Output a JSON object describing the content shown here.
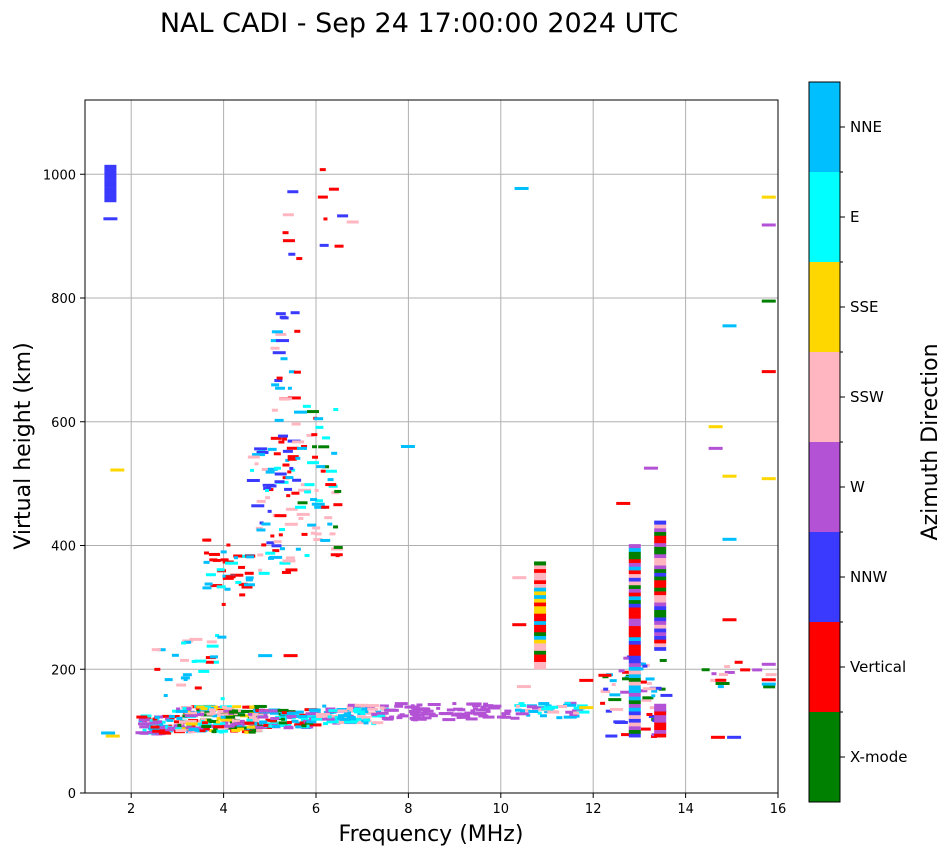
{
  "chart_data": {
    "type": "scatter",
    "title": "NAL CADI - Sep 24 17:00:00 2024 UTC",
    "xlabel": "Frequency (MHz)",
    "ylabel": "Virtual height (km)",
    "xlim": [
      1,
      16
    ],
    "ylim": [
      0,
      1120
    ],
    "xticks": [
      2,
      4,
      6,
      8,
      10,
      12,
      14,
      16
    ],
    "yticks": [
      0,
      200,
      400,
      600,
      800,
      1000
    ],
    "grid": true,
    "colorbar": {
      "title": "Azimuth Direction",
      "categories": [
        {
          "label": "X-mode",
          "color": "#008000"
        },
        {
          "label": "Vertical",
          "color": "#ff0000"
        },
        {
          "label": "NNW",
          "color": "#3a3aff"
        },
        {
          "label": "W",
          "color": "#b452d6"
        },
        {
          "label": "SSW",
          "color": "#ffb6c1"
        },
        {
          "label": "SSE",
          "color": "#ffd700"
        },
        {
          "label": "E",
          "color": "#00ffff"
        },
        {
          "label": "NNE",
          "color": "#00bfff"
        }
      ]
    },
    "seed": 24,
    "bands": [
      {
        "x": [
          2.2,
          3.0
        ],
        "y": [
          95,
          125
        ],
        "n": 70,
        "dir": [
          "Vertical",
          "E",
          "NNE",
          "W"
        ]
      },
      {
        "x": [
          3.0,
          4.8
        ],
        "y": [
          98,
          140
        ],
        "n": 220,
        "dir": [
          "Vertical",
          "NNE",
          "E",
          "W",
          "X-mode",
          "SSW",
          "SSE"
        ]
      },
      {
        "x": [
          4.8,
          6.0
        ],
        "y": [
          105,
          135
        ],
        "n": 90,
        "dir": [
          "X-mode",
          "Vertical",
          "E",
          "NNE",
          "W"
        ]
      },
      {
        "x": [
          6.0,
          7.5
        ],
        "y": [
          112,
          142
        ],
        "n": 90,
        "dir": [
          "W",
          "SSW",
          "NNE",
          "E"
        ]
      },
      {
        "x": [
          7.5,
          10.2
        ],
        "y": [
          118,
          145
        ],
        "n": 80,
        "dir": [
          "W"
        ]
      },
      {
        "x": [
          10.2,
          11.8
        ],
        "y": [
          120,
          145
        ],
        "n": 40,
        "dir": [
          "W",
          "NNE",
          "SSW",
          "E"
        ]
      },
      {
        "x": [
          2.5,
          4.0
        ],
        "y": [
          150,
          260
        ],
        "n": 28,
        "dir": [
          "Vertical",
          "NNE",
          "E",
          "SSW"
        ]
      },
      {
        "x": [
          3.6,
          4.6
        ],
        "y": [
          300,
          410
        ],
        "n": 40,
        "dir": [
          "Vertical",
          "NNE",
          "E"
        ]
      },
      {
        "x": [
          4.6,
          5.6
        ],
        "y": [
          350,
          560
        ],
        "n": 70,
        "dir": [
          "Vertical",
          "NNW",
          "E",
          "NNE",
          "SSW"
        ]
      },
      {
        "x": [
          5.1,
          5.6
        ],
        "y": [
          560,
          780
        ],
        "n": 30,
        "dir": [
          "Vertical",
          "NNW",
          "SSW",
          "NNE"
        ]
      },
      {
        "x": [
          5.6,
          6.5
        ],
        "y": [
          380,
          630
        ],
        "n": 60,
        "dir": [
          "E",
          "NNE",
          "X-mode",
          "Vertical",
          "SSW"
        ]
      },
      {
        "x": [
          5.3,
          6.9
        ],
        "y": [
          860,
          1010
        ],
        "n": 14,
        "dir": [
          "Vertical",
          "NNW",
          "SSW"
        ]
      },
      {
        "x": [
          12.2,
          13.6
        ],
        "y": [
          90,
          220
        ],
        "n": 60,
        "dir": [
          "SSW",
          "Vertical",
          "NNW",
          "W",
          "NNE",
          "X-mode"
        ]
      },
      {
        "x": [
          14.3,
          16.0
        ],
        "y": [
          170,
          215
        ],
        "n": 14,
        "dir": [
          "W",
          "X-mode",
          "SSW",
          "NNE",
          "Vertical"
        ]
      }
    ],
    "columns": [
      {
        "x": 10.85,
        "y": [
          200,
          370
        ],
        "dir": [
          "SSE",
          "X-mode",
          "NNE",
          "Vertical",
          "SSW"
        ]
      },
      {
        "x": 12.9,
        "y": [
          90,
          400
        ],
        "dir": [
          "NNE",
          "NNW",
          "W",
          "Vertical",
          "X-mode",
          "SSW"
        ]
      },
      {
        "x": 13.45,
        "y": [
          230,
          440
        ],
        "dir": [
          "W",
          "NNW",
          "Vertical",
          "SSW",
          "X-mode"
        ]
      },
      {
        "x": 13.45,
        "y": [
          90,
          140
        ],
        "dir": [
          "Vertical",
          "W"
        ]
      },
      {
        "x": 1.55,
        "y": [
          955,
          1015
        ],
        "dir": [
          "NNW"
        ]
      }
    ],
    "points": [
      {
        "x": 1.5,
        "y": 97,
        "dir": "NNE"
      },
      {
        "x": 1.6,
        "y": 92,
        "dir": "SSE"
      },
      {
        "x": 1.55,
        "y": 928,
        "dir": "NNW"
      },
      {
        "x": 1.7,
        "y": 522,
        "dir": "SSE"
      },
      {
        "x": 7.99,
        "y": 560,
        "dir": "NNE"
      },
      {
        "x": 10.45,
        "y": 977,
        "dir": "NNE"
      },
      {
        "x": 10.4,
        "y": 348,
        "dir": "SSW"
      },
      {
        "x": 10.4,
        "y": 272,
        "dir": "Vertical"
      },
      {
        "x": 10.5,
        "y": 172,
        "dir": "SSW"
      },
      {
        "x": 11.85,
        "y": 182,
        "dir": "Vertical"
      },
      {
        "x": 11.85,
        "y": 138,
        "dir": "SSE"
      },
      {
        "x": 12.65,
        "y": 468,
        "dir": "Vertical"
      },
      {
        "x": 13.25,
        "y": 525,
        "dir": "W"
      },
      {
        "x": 14.65,
        "y": 592,
        "dir": "SSE"
      },
      {
        "x": 14.65,
        "y": 557,
        "dir": "W"
      },
      {
        "x": 14.95,
        "y": 512,
        "dir": "SSE"
      },
      {
        "x": 14.95,
        "y": 410,
        "dir": "NNE"
      },
      {
        "x": 14.95,
        "y": 280,
        "dir": "Vertical"
      },
      {
        "x": 14.95,
        "y": 755,
        "dir": "NNE"
      },
      {
        "x": 14.7,
        "y": 90,
        "dir": "Vertical"
      },
      {
        "x": 15.05,
        "y": 90,
        "dir": "NNW"
      },
      {
        "x": 15.8,
        "y": 963,
        "dir": "SSE"
      },
      {
        "x": 15.8,
        "y": 918,
        "dir": "W"
      },
      {
        "x": 15.8,
        "y": 795,
        "dir": "X-mode"
      },
      {
        "x": 15.8,
        "y": 681,
        "dir": "Vertical"
      },
      {
        "x": 15.8,
        "y": 508,
        "dir": "SSE"
      },
      {
        "x": 15.8,
        "y": 208,
        "dir": "W"
      },
      {
        "x": 15.8,
        "y": 183,
        "dir": "Vertical"
      },
      {
        "x": 15.8,
        "y": 176,
        "dir": "NNE"
      },
      {
        "x": 14.8,
        "y": 177,
        "dir": "X-mode"
      },
      {
        "x": 4.9,
        "y": 222,
        "dir": "NNE"
      },
      {
        "x": 5.45,
        "y": 222,
        "dir": "Vertical"
      }
    ]
  }
}
